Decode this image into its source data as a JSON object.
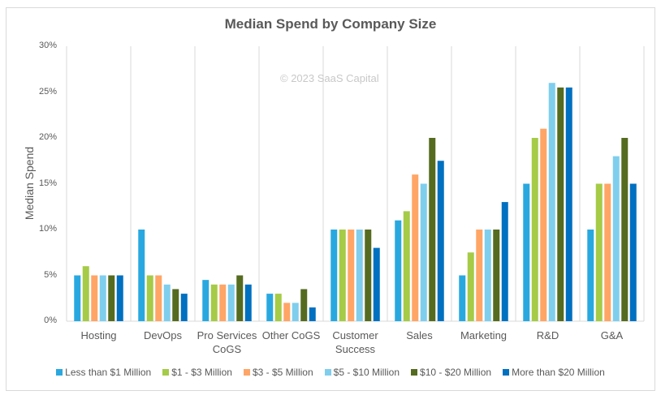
{
  "chart_data": {
    "type": "bar",
    "title": "Median Spend by Company Size",
    "watermark": "© 2023 SaaS Capital",
    "xlabel": "",
    "ylabel": "Median Spend",
    "ylim": [
      0,
      30
    ],
    "yticks": [
      "0%",
      "5%",
      "10%",
      "15%",
      "20%",
      "25%",
      "30%"
    ],
    "grid": "vertical category separators",
    "legend_position": "bottom",
    "categories": [
      "Hosting",
      "DevOps",
      "Pro Services CoGS",
      "Other CoGS",
      "Customer Success",
      "Sales",
      "Marketing",
      "R&D",
      "G&A"
    ],
    "category_lines": [
      [
        "Hosting"
      ],
      [
        "DevOps"
      ],
      [
        "Pro Services",
        "CoGS"
      ],
      [
        "Other CoGS"
      ],
      [
        "Customer",
        "Success"
      ],
      [
        "Sales"
      ],
      [
        "Marketing"
      ],
      [
        "R&D"
      ],
      [
        "G&A"
      ]
    ],
    "series": [
      {
        "name": "Less than $1 Million",
        "color": "#29A8E0",
        "values": [
          5,
          10,
          4.5,
          3,
          10,
          11,
          5,
          15,
          10
        ]
      },
      {
        "name": "$1 - $3 Million",
        "color": "#A5CB47",
        "values": [
          6,
          5,
          4,
          3,
          10,
          12,
          7.5,
          20,
          15
        ]
      },
      {
        "name": "$3 - $5 Million",
        "color": "#FFA566",
        "values": [
          5,
          5,
          4,
          2,
          10,
          16,
          10,
          21,
          15
        ]
      },
      {
        "name": "$5 - $10 Million",
        "color": "#7FCEEE",
        "values": [
          5,
          4,
          4,
          2,
          10,
          15,
          10,
          26,
          18
        ]
      },
      {
        "name": "$10 - $20 Million",
        "color": "#556B20",
        "values": [
          5,
          3.5,
          5,
          3.5,
          10,
          20,
          10,
          25.5,
          20
        ]
      },
      {
        "name": "More than $20 Million",
        "color": "#0070C0",
        "values": [
          5,
          3,
          4,
          1.5,
          8,
          17.5,
          13,
          25.5,
          15
        ]
      }
    ]
  }
}
